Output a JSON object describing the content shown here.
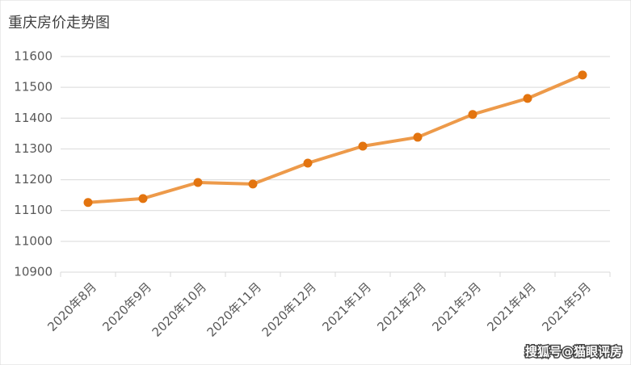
{
  "chart_data": {
    "type": "line",
    "title": "重庆房价走势图",
    "categories": [
      "2020年8月",
      "2020年9月",
      "2020年10月",
      "2020年11月",
      "2020年12月",
      "2021年1月",
      "2021年2月",
      "2021年3月",
      "2021年4月",
      "2021年5月"
    ],
    "values": [
      11126,
      11139,
      11191,
      11186,
      11254,
      11309,
      11338,
      11412,
      11464,
      11540
    ],
    "color": "#ed9a4a",
    "marker_color": "#e3740f",
    "ylim": [
      10900,
      11600
    ],
    "yticks": [
      10900,
      11000,
      11100,
      11200,
      11300,
      11400,
      11500,
      11600
    ],
    "grid": true
  },
  "watermark": "搜狐号@猫眼评房"
}
